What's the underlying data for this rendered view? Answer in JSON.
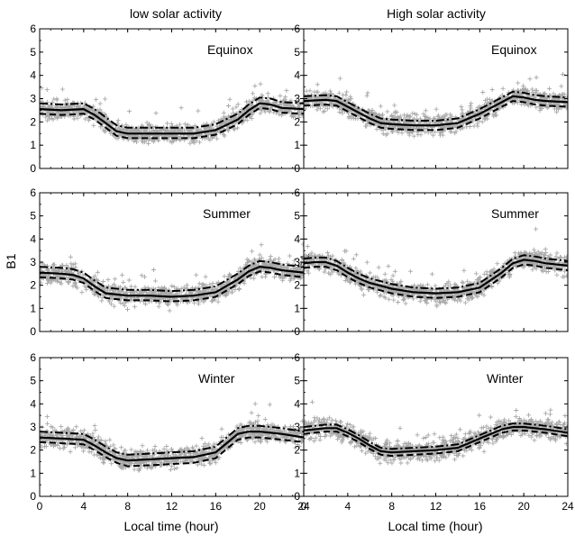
{
  "figure": {
    "column_titles": [
      "low solar activity",
      "High solar activity"
    ],
    "xlabel": "Local time (hour)",
    "ylabel": "B1"
  },
  "colors": {
    "scatter": "#a8a8a8",
    "median_line": "#000000",
    "bound_lines": "#000000",
    "frame": "#000000"
  },
  "chart_data": [
    {
      "type": "line",
      "panel": "low-equinox",
      "title": "Equinox",
      "x_ticks": [
        0,
        4,
        8,
        12,
        16,
        20,
        24
      ],
      "y_ticks": [
        0,
        1,
        2,
        3,
        4,
        5,
        6
      ],
      "xlim": [
        0,
        24
      ],
      "ylim": [
        0,
        6
      ],
      "scatter_spread": 0.45,
      "series": [
        {
          "role": "median",
          "style": "solid",
          "x": [
            0,
            2,
            4,
            5,
            6,
            7,
            8,
            10,
            12,
            14,
            16,
            18,
            19,
            20,
            21,
            22,
            24
          ],
          "y": [
            2.55,
            2.5,
            2.55,
            2.3,
            1.95,
            1.6,
            1.5,
            1.5,
            1.5,
            1.5,
            1.65,
            2.1,
            2.5,
            2.8,
            2.75,
            2.6,
            2.55
          ]
        },
        {
          "role": "upper",
          "style": "dash-dot",
          "x": [
            0,
            2,
            4,
            5,
            6,
            7,
            8,
            10,
            12,
            14,
            16,
            18,
            19,
            20,
            21,
            22,
            24
          ],
          "y": [
            2.8,
            2.75,
            2.8,
            2.55,
            2.2,
            1.85,
            1.75,
            1.75,
            1.75,
            1.75,
            1.9,
            2.35,
            2.75,
            3.05,
            3.0,
            2.85,
            2.8
          ]
        },
        {
          "role": "lower",
          "style": "dashed",
          "x": [
            0,
            2,
            4,
            5,
            6,
            7,
            8,
            10,
            12,
            14,
            16,
            18,
            19,
            20,
            21,
            22,
            24
          ],
          "y": [
            2.35,
            2.3,
            2.35,
            2.1,
            1.75,
            1.4,
            1.3,
            1.3,
            1.3,
            1.3,
            1.45,
            1.9,
            2.3,
            2.6,
            2.55,
            2.4,
            2.35
          ]
        }
      ]
    },
    {
      "type": "line",
      "panel": "high-equinox",
      "title": "Equinox",
      "x_ticks": [
        0,
        4,
        8,
        12,
        16,
        20,
        24
      ],
      "y_ticks": [
        0,
        1,
        2,
        3,
        4,
        5,
        6
      ],
      "xlim": [
        0,
        24
      ],
      "ylim": [
        0,
        6
      ],
      "scatter_spread": 0.5,
      "series": [
        {
          "role": "median",
          "style": "solid",
          "x": [
            0,
            2,
            3,
            4,
            5,
            6,
            7,
            8,
            10,
            12,
            14,
            16,
            18,
            19,
            20,
            21,
            22,
            24
          ],
          "y": [
            2.9,
            2.95,
            2.9,
            2.65,
            2.4,
            2.15,
            1.95,
            1.9,
            1.85,
            1.85,
            1.95,
            2.35,
            2.85,
            3.1,
            3.05,
            2.95,
            2.9,
            2.85
          ]
        },
        {
          "role": "upper",
          "style": "dash-dot",
          "x": [
            0,
            2,
            3,
            4,
            5,
            6,
            7,
            8,
            10,
            12,
            14,
            16,
            18,
            19,
            20,
            21,
            22,
            24
          ],
          "y": [
            3.1,
            3.15,
            3.1,
            2.85,
            2.6,
            2.35,
            2.15,
            2.1,
            2.05,
            2.05,
            2.15,
            2.55,
            3.05,
            3.3,
            3.25,
            3.15,
            3.1,
            3.05
          ]
        },
        {
          "role": "lower",
          "style": "dashed",
          "x": [
            0,
            2,
            3,
            4,
            5,
            6,
            7,
            8,
            10,
            12,
            14,
            16,
            18,
            19,
            20,
            21,
            22,
            24
          ],
          "y": [
            2.7,
            2.75,
            2.7,
            2.45,
            2.2,
            1.95,
            1.75,
            1.7,
            1.65,
            1.65,
            1.75,
            2.15,
            2.65,
            2.9,
            2.85,
            2.75,
            2.7,
            2.65
          ]
        }
      ]
    },
    {
      "type": "line",
      "panel": "low-summer",
      "title": "Summer",
      "x_ticks": [
        0,
        4,
        8,
        12,
        16,
        20,
        24
      ],
      "y_ticks": [
        0,
        1,
        2,
        3,
        4,
        5,
        6
      ],
      "xlim": [
        0,
        24
      ],
      "ylim": [
        0,
        6
      ],
      "scatter_spread": 0.5,
      "series": [
        {
          "role": "median",
          "style": "solid",
          "x": [
            0,
            2,
            3,
            4,
            5,
            6,
            8,
            10,
            12,
            14,
            16,
            18,
            19,
            20,
            21,
            22,
            24
          ],
          "y": [
            2.55,
            2.5,
            2.45,
            2.3,
            1.95,
            1.65,
            1.55,
            1.55,
            1.5,
            1.55,
            1.7,
            2.25,
            2.6,
            2.8,
            2.75,
            2.65,
            2.55
          ]
        },
        {
          "role": "upper",
          "style": "dash-dot",
          "x": [
            0,
            2,
            3,
            4,
            5,
            6,
            8,
            10,
            12,
            14,
            16,
            18,
            19,
            20,
            21,
            22,
            24
          ],
          "y": [
            2.8,
            2.75,
            2.7,
            2.55,
            2.2,
            1.9,
            1.8,
            1.8,
            1.75,
            1.8,
            1.95,
            2.5,
            2.85,
            3.05,
            3.0,
            2.9,
            2.8
          ]
        },
        {
          "role": "lower",
          "style": "dashed",
          "x": [
            0,
            2,
            3,
            4,
            5,
            6,
            8,
            10,
            12,
            14,
            16,
            18,
            19,
            20,
            21,
            22,
            24
          ],
          "y": [
            2.35,
            2.3,
            2.25,
            2.1,
            1.75,
            1.45,
            1.35,
            1.35,
            1.3,
            1.35,
            1.5,
            2.05,
            2.4,
            2.6,
            2.55,
            2.45,
            2.35
          ]
        }
      ]
    },
    {
      "type": "line",
      "panel": "high-summer",
      "title": "Summer",
      "x_ticks": [
        0,
        4,
        8,
        12,
        16,
        20,
        24
      ],
      "y_ticks": [
        0,
        1,
        2,
        3,
        4,
        5,
        6
      ],
      "xlim": [
        0,
        24
      ],
      "ylim": [
        0,
        6
      ],
      "scatter_spread": 0.5,
      "series": [
        {
          "role": "median",
          "style": "solid",
          "x": [
            0,
            1,
            2,
            3,
            4,
            5,
            6,
            8,
            10,
            12,
            14,
            16,
            18,
            19,
            20,
            21,
            22,
            24
          ],
          "y": [
            2.95,
            3.0,
            3.0,
            2.85,
            2.55,
            2.3,
            2.1,
            1.85,
            1.7,
            1.65,
            1.7,
            1.9,
            2.55,
            2.95,
            3.1,
            3.05,
            2.95,
            2.85
          ]
        },
        {
          "role": "upper",
          "style": "dash-dot",
          "x": [
            0,
            1,
            2,
            3,
            4,
            5,
            6,
            8,
            10,
            12,
            14,
            16,
            18,
            19,
            20,
            21,
            22,
            24
          ],
          "y": [
            3.15,
            3.2,
            3.2,
            3.05,
            2.75,
            2.5,
            2.3,
            2.05,
            1.9,
            1.85,
            1.9,
            2.1,
            2.75,
            3.15,
            3.3,
            3.25,
            3.15,
            3.05
          ]
        },
        {
          "role": "lower",
          "style": "dashed",
          "x": [
            0,
            1,
            2,
            3,
            4,
            5,
            6,
            8,
            10,
            12,
            14,
            16,
            18,
            19,
            20,
            21,
            22,
            24
          ],
          "y": [
            2.75,
            2.8,
            2.8,
            2.65,
            2.35,
            2.1,
            1.9,
            1.65,
            1.5,
            1.45,
            1.5,
            1.7,
            2.35,
            2.75,
            2.9,
            2.85,
            2.75,
            2.65
          ]
        }
      ]
    },
    {
      "type": "line",
      "panel": "low-winter",
      "title": "Winter",
      "x_ticks": [
        0,
        4,
        8,
        12,
        16,
        20,
        24
      ],
      "y_ticks": [
        0,
        1,
        2,
        3,
        4,
        5,
        6
      ],
      "xlim": [
        0,
        24
      ],
      "ylim": [
        0,
        6
      ],
      "scatter_spread": 0.5,
      "series": [
        {
          "role": "median",
          "style": "solid",
          "x": [
            0,
            2,
            4,
            5,
            6,
            7,
            8,
            10,
            12,
            14,
            16,
            17,
            18,
            19,
            20,
            22,
            24
          ],
          "y": [
            2.55,
            2.5,
            2.45,
            2.2,
            1.9,
            1.65,
            1.55,
            1.6,
            1.65,
            1.7,
            1.9,
            2.3,
            2.7,
            2.8,
            2.8,
            2.7,
            2.55
          ]
        },
        {
          "role": "upper",
          "style": "dash-dot",
          "x": [
            0,
            2,
            4,
            5,
            6,
            7,
            8,
            10,
            12,
            14,
            16,
            17,
            18,
            19,
            20,
            22,
            24
          ],
          "y": [
            2.8,
            2.75,
            2.7,
            2.45,
            2.15,
            1.9,
            1.8,
            1.85,
            1.9,
            1.95,
            2.15,
            2.55,
            2.95,
            3.05,
            3.05,
            2.95,
            2.8
          ]
        },
        {
          "role": "lower",
          "style": "dashed",
          "x": [
            0,
            2,
            4,
            5,
            6,
            7,
            8,
            10,
            12,
            14,
            16,
            17,
            18,
            19,
            20,
            22,
            24
          ],
          "y": [
            2.35,
            2.3,
            2.25,
            2.0,
            1.7,
            1.45,
            1.3,
            1.35,
            1.4,
            1.45,
            1.65,
            2.05,
            2.45,
            2.55,
            2.55,
            2.45,
            2.35
          ]
        }
      ]
    },
    {
      "type": "line",
      "panel": "high-winter",
      "title": "Winter",
      "x_ticks": [
        0,
        4,
        8,
        12,
        16,
        20,
        24
      ],
      "y_ticks": [
        0,
        1,
        2,
        3,
        4,
        5,
        6
      ],
      "xlim": [
        0,
        24
      ],
      "ylim": [
        0,
        6
      ],
      "scatter_spread": 0.5,
      "series": [
        {
          "role": "median",
          "style": "solid",
          "x": [
            0,
            2,
            3,
            4,
            5,
            6,
            7,
            8,
            10,
            12,
            14,
            16,
            18,
            19,
            20,
            22,
            24
          ],
          "y": [
            2.85,
            2.95,
            2.95,
            2.75,
            2.5,
            2.2,
            1.95,
            1.9,
            1.95,
            2.0,
            2.1,
            2.5,
            2.9,
            3.0,
            3.0,
            2.9,
            2.75
          ]
        },
        {
          "role": "upper",
          "style": "dash-dot",
          "x": [
            0,
            2,
            3,
            4,
            5,
            6,
            7,
            8,
            10,
            12,
            14,
            16,
            18,
            19,
            20,
            22,
            24
          ],
          "y": [
            3.0,
            3.1,
            3.1,
            2.9,
            2.65,
            2.35,
            2.1,
            2.05,
            2.1,
            2.15,
            2.25,
            2.65,
            3.05,
            3.15,
            3.15,
            3.05,
            2.9
          ]
        },
        {
          "role": "lower",
          "style": "dashed",
          "x": [
            0,
            2,
            3,
            4,
            5,
            6,
            7,
            8,
            10,
            12,
            14,
            16,
            18,
            19,
            20,
            22,
            24
          ],
          "y": [
            2.7,
            2.8,
            2.8,
            2.6,
            2.35,
            2.05,
            1.8,
            1.75,
            1.8,
            1.85,
            1.95,
            2.35,
            2.75,
            2.85,
            2.85,
            2.75,
            2.6
          ]
        }
      ]
    }
  ]
}
